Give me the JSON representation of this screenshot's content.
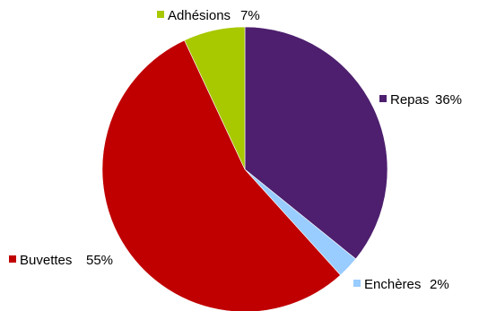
{
  "chart_data": {
    "type": "pie",
    "title": "",
    "slices": [
      {
        "label": "Repas",
        "value": 36,
        "text": "36%",
        "color": "#4d1f6e"
      },
      {
        "label": "Enchères",
        "value": 2.5,
        "text": "2%",
        "color": "#99ccff"
      },
      {
        "label": "Buvettes",
        "value": 55,
        "text": "55%",
        "color": "#c00000"
      },
      {
        "label": "Adhésions",
        "value": 7,
        "text": "7%",
        "color": "#a8c800"
      }
    ],
    "start_angle_deg": 0,
    "direction": "clockwise",
    "legend": "labels-outside"
  }
}
